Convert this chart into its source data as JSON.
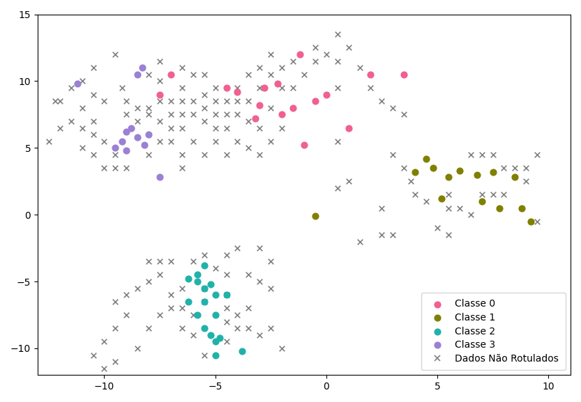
{
  "xlim": [
    -13,
    11
  ],
  "ylim": [
    -12,
    15
  ],
  "xticks": [
    -10,
    -5,
    0,
    5,
    10
  ],
  "yticks": [
    -10,
    -5,
    0,
    5,
    10,
    15
  ],
  "class0_color": "#F06090",
  "class1_color": "#808000",
  "class2_color": "#20B2AA",
  "class3_color": "#9B80D4",
  "unlabeled_color": "#808080",
  "class0_points": [
    [
      -7.5,
      9.0
    ],
    [
      -7.0,
      10.5
    ],
    [
      -4.5,
      9.5
    ],
    [
      -4.0,
      9.2
    ],
    [
      -3.0,
      8.2
    ],
    [
      -2.8,
      9.5
    ],
    [
      -2.2,
      9.8
    ],
    [
      -1.5,
      8.0
    ],
    [
      -1.2,
      12.0
    ],
    [
      -0.5,
      8.5
    ],
    [
      0.0,
      9.0
    ],
    [
      1.0,
      6.5
    ],
    [
      2.0,
      10.5
    ],
    [
      3.5,
      10.5
    ],
    [
      -2.0,
      7.5
    ],
    [
      -3.2,
      7.2
    ],
    [
      -1.0,
      5.2
    ]
  ],
  "class1_points": [
    [
      -0.5,
      -0.1
    ],
    [
      4.0,
      3.2
    ],
    [
      4.8,
      3.5
    ],
    [
      5.5,
      2.8
    ],
    [
      6.0,
      3.3
    ],
    [
      6.8,
      3.0
    ],
    [
      7.5,
      3.2
    ],
    [
      8.5,
      2.8
    ],
    [
      5.2,
      1.2
    ],
    [
      7.0,
      1.0
    ],
    [
      8.8,
      0.5
    ],
    [
      9.2,
      -0.5
    ],
    [
      4.5,
      4.2
    ],
    [
      7.8,
      0.5
    ]
  ],
  "class2_points": [
    [
      -6.2,
      -4.8
    ],
    [
      -5.8,
      -5.0
    ],
    [
      -5.2,
      -5.2
    ],
    [
      -5.5,
      -5.5
    ],
    [
      -5.8,
      -4.5
    ],
    [
      -5.0,
      -6.0
    ],
    [
      -5.5,
      -6.5
    ],
    [
      -5.8,
      -7.5
    ],
    [
      -5.5,
      -8.5
    ],
    [
      -5.2,
      -9.0
    ],
    [
      -5.0,
      -9.5
    ],
    [
      -4.8,
      -9.2
    ],
    [
      -5.0,
      -10.5
    ],
    [
      -6.2,
      -6.5
    ],
    [
      -5.0,
      -7.5
    ],
    [
      -3.8,
      -10.2
    ],
    [
      -4.5,
      -6.0
    ],
    [
      -5.5,
      -3.8
    ]
  ],
  "class3_points": [
    [
      -11.2,
      9.8
    ],
    [
      -8.5,
      10.5
    ],
    [
      -8.3,
      11.0
    ],
    [
      -9.0,
      6.2
    ],
    [
      -9.2,
      5.5
    ],
    [
      -9.5,
      5.0
    ],
    [
      -8.8,
      6.5
    ],
    [
      -8.5,
      5.8
    ],
    [
      -8.0,
      6.0
    ],
    [
      -8.2,
      5.2
    ],
    [
      -9.0,
      4.8
    ],
    [
      -7.5,
      2.8
    ]
  ],
  "unlabeled_points": [
    [
      -12.5,
      5.5
    ],
    [
      -12.0,
      6.5
    ],
    [
      -12.2,
      8.5
    ],
    [
      -11.5,
      9.5
    ],
    [
      -11.0,
      10.0
    ],
    [
      -11.0,
      6.5
    ],
    [
      -11.0,
      8.0
    ],
    [
      -10.5,
      7.0
    ],
    [
      -10.5,
      9.0
    ],
    [
      -10.5,
      11.0
    ],
    [
      -10.0,
      8.5
    ],
    [
      -9.5,
      12.0
    ],
    [
      -9.2,
      9.5
    ],
    [
      -9.0,
      8.5
    ],
    [
      -9.0,
      7.5
    ],
    [
      -8.5,
      8.0
    ],
    [
      -8.5,
      7.0
    ],
    [
      -8.0,
      10.5
    ],
    [
      -8.0,
      8.0
    ],
    [
      -8.0,
      7.5
    ],
    [
      -7.5,
      7.0
    ],
    [
      -7.5,
      8.5
    ],
    [
      -7.5,
      11.5
    ],
    [
      -7.0,
      6.5
    ],
    [
      -7.0,
      7.5
    ],
    [
      -7.0,
      8.5
    ],
    [
      -7.5,
      10.0
    ],
    [
      -6.5,
      6.5
    ],
    [
      -6.5,
      7.5
    ],
    [
      -6.5,
      8.5
    ],
    [
      -6.5,
      9.5
    ],
    [
      -6.0,
      7.5
    ],
    [
      -6.0,
      8.5
    ],
    [
      -6.5,
      11.0
    ],
    [
      -6.0,
      10.5
    ],
    [
      -5.5,
      9.0
    ],
    [
      -5.5,
      8.0
    ],
    [
      -5.5,
      7.0
    ],
    [
      -5.5,
      10.5
    ],
    [
      -5.0,
      8.5
    ],
    [
      -5.0,
      7.5
    ],
    [
      -5.0,
      9.5
    ],
    [
      -5.0,
      6.5
    ],
    [
      -4.5,
      7.5
    ],
    [
      -4.5,
      8.5
    ],
    [
      -4.5,
      6.5
    ],
    [
      -4.0,
      7.5
    ],
    [
      -4.0,
      8.5
    ],
    [
      -4.0,
      9.5
    ],
    [
      -3.5,
      8.5
    ],
    [
      -3.5,
      10.5
    ],
    [
      -3.5,
      7.0
    ],
    [
      -3.0,
      9.5
    ],
    [
      -3.0,
      11.0
    ],
    [
      -3.0,
      6.5
    ],
    [
      -2.5,
      8.0
    ],
    [
      -2.5,
      10.5
    ],
    [
      -2.5,
      12.0
    ],
    [
      -2.0,
      9.5
    ],
    [
      -2.0,
      11.0
    ],
    [
      -1.5,
      9.5
    ],
    [
      -1.5,
      11.5
    ],
    [
      -1.0,
      10.5
    ],
    [
      -0.5,
      11.5
    ],
    [
      -0.5,
      12.5
    ],
    [
      0.0,
      12.0
    ],
    [
      0.5,
      11.5
    ],
    [
      0.5,
      13.5
    ],
    [
      1.0,
      12.5
    ],
    [
      1.5,
      11.0
    ],
    [
      2.0,
      9.5
    ],
    [
      2.5,
      8.5
    ],
    [
      3.0,
      8.0
    ],
    [
      3.5,
      7.5
    ],
    [
      -6.5,
      4.5
    ],
    [
      -6.0,
      5.5
    ],
    [
      -6.5,
      3.5
    ],
    [
      -5.5,
      4.5
    ],
    [
      -5.0,
      5.5
    ],
    [
      -4.5,
      4.5
    ],
    [
      -4.0,
      5.5
    ],
    [
      -3.5,
      5.0
    ],
    [
      -3.0,
      4.5
    ],
    [
      -2.5,
      5.5
    ],
    [
      -2.0,
      6.5
    ],
    [
      -10.0,
      3.5
    ],
    [
      -9.5,
      4.5
    ],
    [
      -9.5,
      3.5
    ],
    [
      -10.5,
      4.5
    ],
    [
      -10.0,
      5.5
    ],
    [
      -11.0,
      5.0
    ],
    [
      -10.5,
      6.0
    ],
    [
      -9.0,
      3.5
    ],
    [
      -8.0,
      4.5
    ],
    [
      -7.5,
      5.5
    ],
    [
      -7.0,
      5.5
    ],
    [
      -11.5,
      7.0
    ],
    [
      -12.0,
      8.5
    ],
    [
      0.5,
      5.5
    ],
    [
      1.0,
      2.5
    ],
    [
      0.5,
      2.0
    ],
    [
      1.5,
      -2.0
    ],
    [
      3.0,
      4.5
    ],
    [
      3.5,
      3.5
    ],
    [
      3.8,
      2.5
    ],
    [
      4.0,
      1.5
    ],
    [
      4.5,
      1.0
    ],
    [
      5.5,
      1.5
    ],
    [
      5.5,
      0.5
    ],
    [
      6.0,
      0.5
    ],
    [
      6.5,
      0.0
    ],
    [
      7.0,
      1.5
    ],
    [
      7.5,
      1.5
    ],
    [
      8.0,
      1.5
    ],
    [
      8.5,
      3.5
    ],
    [
      9.0,
      3.5
    ],
    [
      9.5,
      4.5
    ],
    [
      6.5,
      4.5
    ],
    [
      7.0,
      4.5
    ],
    [
      7.5,
      4.5
    ],
    [
      8.0,
      3.5
    ],
    [
      9.0,
      2.5
    ],
    [
      9.5,
      -0.5
    ],
    [
      5.0,
      -1.0
    ],
    [
      5.5,
      -1.5
    ],
    [
      3.0,
      -1.5
    ],
    [
      2.5,
      0.5
    ],
    [
      2.5,
      -1.5
    ],
    [
      0.5,
      9.5
    ],
    [
      -3.0,
      -2.5
    ],
    [
      -4.0,
      -2.5
    ],
    [
      -4.5,
      -3.0
    ],
    [
      -5.5,
      -3.0
    ],
    [
      -6.0,
      -3.5
    ],
    [
      -7.0,
      -3.5
    ],
    [
      -7.5,
      -4.5
    ],
    [
      -8.0,
      -5.0
    ],
    [
      -8.5,
      -5.5
    ],
    [
      -9.0,
      -6.0
    ],
    [
      -9.5,
      -6.5
    ],
    [
      -9.0,
      -7.5
    ],
    [
      -9.5,
      -8.5
    ],
    [
      -10.0,
      -9.5
    ],
    [
      -10.5,
      -10.5
    ],
    [
      -10.0,
      -11.5
    ],
    [
      -9.5,
      -11.0
    ],
    [
      -8.5,
      -10.0
    ],
    [
      -8.0,
      -8.5
    ],
    [
      -7.5,
      -7.5
    ],
    [
      -7.0,
      -7.0
    ],
    [
      -7.0,
      -6.0
    ],
    [
      -6.5,
      -5.5
    ],
    [
      -6.5,
      -7.0
    ],
    [
      -6.0,
      -7.5
    ],
    [
      -6.5,
      -8.5
    ],
    [
      -6.0,
      -9.0
    ],
    [
      -5.5,
      -10.5
    ],
    [
      -5.5,
      -6.5
    ],
    [
      -5.5,
      -5.5
    ],
    [
      -4.5,
      -6.0
    ],
    [
      -4.5,
      -7.0
    ],
    [
      -4.5,
      -8.0
    ],
    [
      -4.0,
      -8.5
    ],
    [
      -4.0,
      -7.5
    ],
    [
      -4.5,
      -9.5
    ],
    [
      -3.5,
      -7.0
    ],
    [
      -3.5,
      -8.5
    ],
    [
      -3.0,
      -9.0
    ],
    [
      -2.5,
      -8.5
    ],
    [
      -2.0,
      -10.0
    ],
    [
      -7.5,
      -3.5
    ],
    [
      -8.0,
      -3.5
    ],
    [
      -5.0,
      -4.0
    ],
    [
      -4.5,
      -4.5
    ],
    [
      -3.5,
      -4.5
    ],
    [
      -3.0,
      -5.0
    ],
    [
      -2.5,
      -5.5
    ],
    [
      -2.5,
      -3.5
    ]
  ],
  "legend_labels": [
    "Classe 0",
    "Classe 1",
    "Classe 2",
    "Classe 3",
    "Dados Não Rotulados"
  ],
  "figsize": [
    8.33,
    5.77
  ],
  "dpi": 100,
  "point_size_colored": 40,
  "point_size_unlabeled": 30,
  "marker_linewidth": 1.2
}
